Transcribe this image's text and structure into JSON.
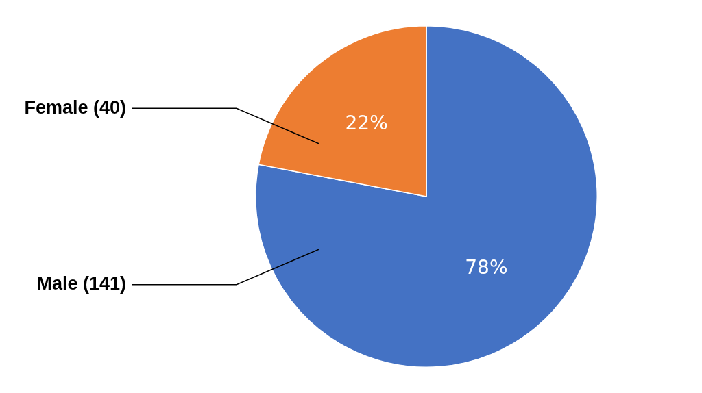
{
  "chart_data": {
    "type": "pie",
    "categories": [
      "Male (141)",
      "Female (40)"
    ],
    "values": [
      78,
      22
    ],
    "value_labels": [
      "78%",
      "22%"
    ],
    "colors": [
      "#4472c4",
      "#ed7d31"
    ],
    "legend": false
  }
}
